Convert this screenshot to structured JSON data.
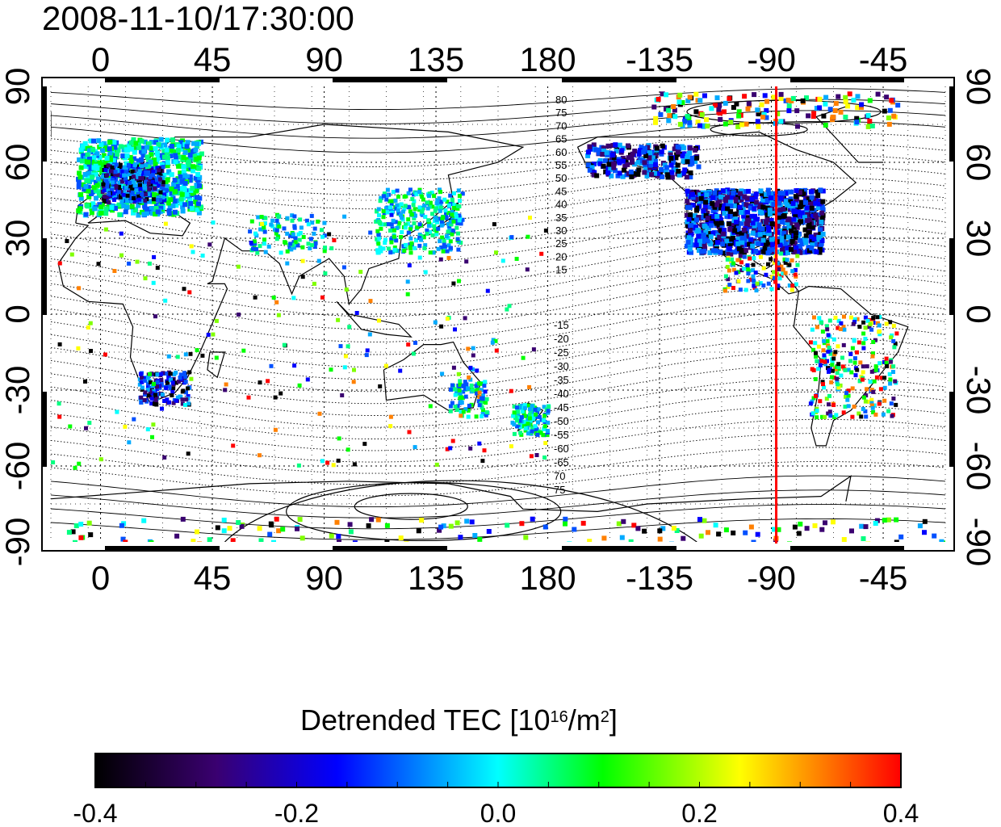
{
  "timestamp": "2008-11-10/17:30:00",
  "map": {
    "lon_ticks": [
      "0",
      "45",
      "90",
      "135",
      "180",
      "-135",
      "-90",
      "-45"
    ],
    "lat_ticks": [
      "90",
      "60",
      "30",
      "0",
      "-30",
      "-60",
      "-90"
    ],
    "terminator_longitude": -90,
    "terminator_color": "#ff0000",
    "north_contour_labels": [
      "80",
      "75",
      "70",
      "65",
      "60",
      "55",
      "50",
      "45",
      "40",
      "35",
      "30",
      "25",
      "20",
      "15"
    ],
    "south_contour_labels": [
      "-15",
      "-20",
      "-25",
      "-30",
      "-35",
      "-40",
      "-45",
      "-50",
      "-55",
      "-60",
      "-65",
      "70",
      "75"
    ]
  },
  "colorbar": {
    "title_prefix": "Detrended TEC  [10",
    "title_exp1": "16",
    "title_mid": "/m",
    "title_exp2": "2",
    "title_suffix": "]",
    "tick_labels": [
      "-0.4",
      "-0.2",
      "0.0",
      "0.2",
      "0.4"
    ],
    "stops": [
      "#000000",
      "#3a0070",
      "#0000ff",
      "#00ffff",
      "#00ff00",
      "#ffff00",
      "#ff0000"
    ]
  }
}
